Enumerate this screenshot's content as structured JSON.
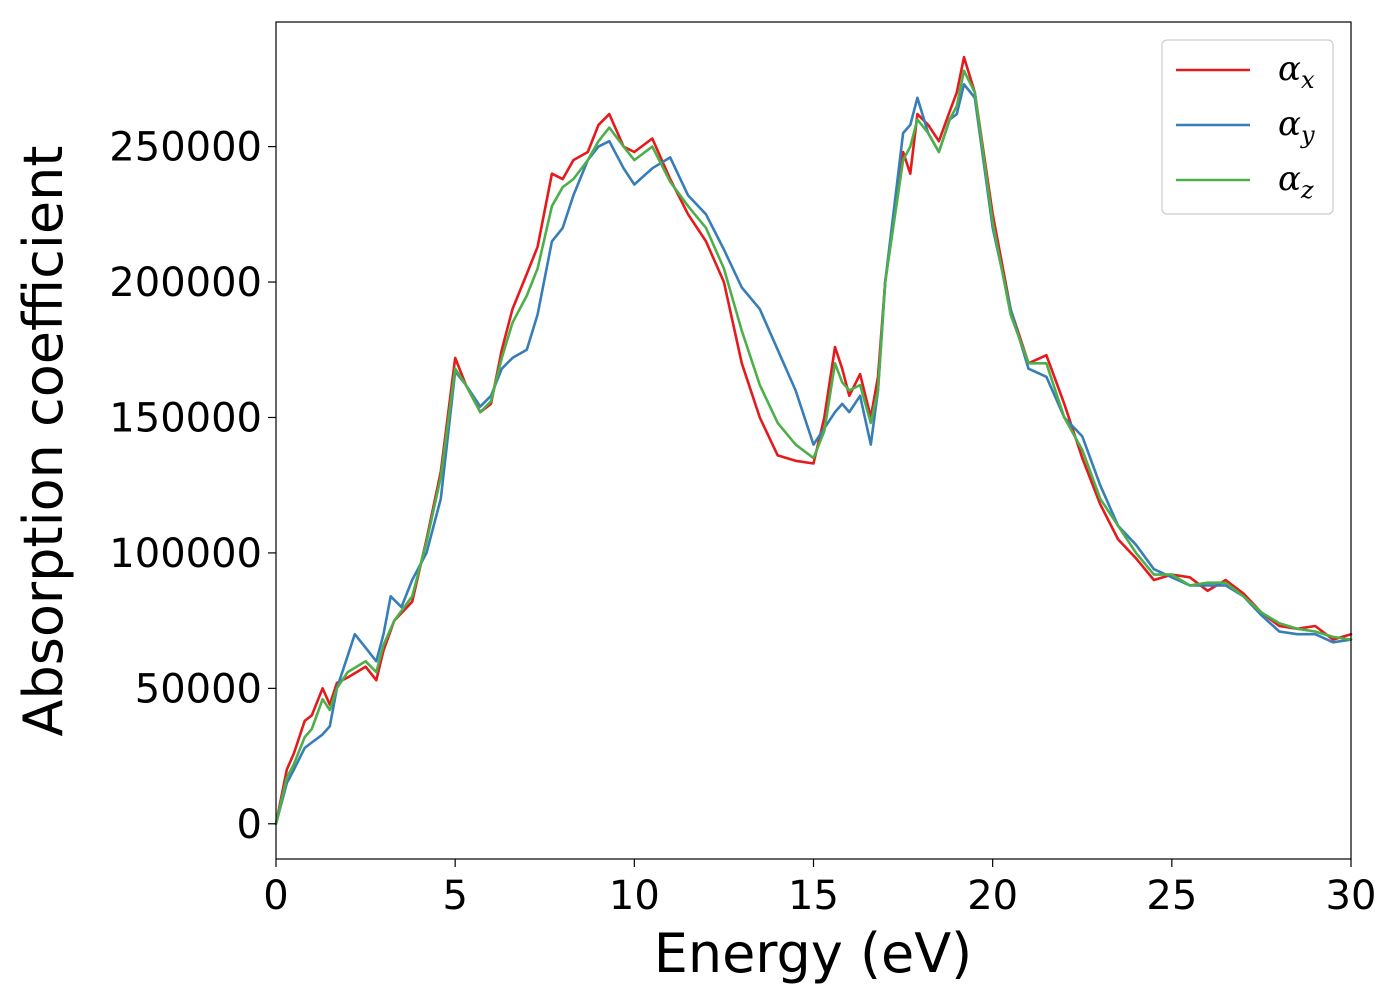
{
  "chart_data": {
    "type": "line",
    "xlabel": "Energy (eV)",
    "ylabel": "Absorption coefficient",
    "xlim": [
      0,
      30
    ],
    "ylim": [
      -13000,
      296000
    ],
    "xticks": [
      0,
      5,
      10,
      15,
      20,
      25,
      30
    ],
    "xtick_labels": [
      "0",
      "5",
      "10",
      "15",
      "20",
      "25",
      "30"
    ],
    "yticks": [
      0,
      50000,
      100000,
      150000,
      200000,
      250000
    ],
    "ytick_labels": [
      "0",
      "50000",
      "100000",
      "150000",
      "200000",
      "250000"
    ],
    "legend": {
      "position": "top-right"
    },
    "series": [
      {
        "name": "α",
        "subscript": "x",
        "color": "#e41a1c",
        "x": [
          0,
          0.3,
          0.5,
          0.8,
          1.0,
          1.3,
          1.5,
          1.7,
          2.0,
          2.5,
          2.8,
          3.0,
          3.3,
          3.8,
          4.2,
          4.6,
          5.0,
          5.3,
          5.7,
          6.0,
          6.3,
          6.6,
          7.0,
          7.3,
          7.7,
          8.0,
          8.3,
          8.7,
          9.0,
          9.3,
          9.7,
          10.0,
          10.5,
          11.0,
          11.5,
          12.0,
          12.5,
          13.0,
          13.5,
          14.0,
          14.5,
          15.0,
          15.3,
          15.6,
          15.8,
          16.0,
          16.3,
          16.6,
          16.8,
          17.0,
          17.5,
          17.7,
          17.9,
          18.2,
          18.5,
          18.8,
          19.0,
          19.2,
          19.5,
          20.0,
          20.5,
          21.0,
          21.5,
          22.0,
          22.5,
          23.0,
          23.5,
          24.0,
          24.5,
          25.0,
          25.5,
          26.0,
          26.5,
          27.0,
          27.5,
          28.0,
          28.5,
          29.0,
          29.5,
          30.0
        ],
        "y": [
          0,
          20000,
          26000,
          38000,
          40000,
          50000,
          44000,
          52000,
          54000,
          58000,
          53000,
          64000,
          75000,
          82000,
          105000,
          130000,
          172000,
          162000,
          152000,
          155000,
          175000,
          190000,
          203000,
          213000,
          240000,
          238000,
          245000,
          248000,
          258000,
          262000,
          250000,
          248000,
          253000,
          238000,
          225000,
          215000,
          200000,
          170000,
          150000,
          136000,
          134000,
          133000,
          150000,
          176000,
          168000,
          158000,
          166000,
          150000,
          165000,
          200000,
          248000,
          240000,
          262000,
          258000,
          252000,
          263000,
          270000,
          283000,
          270000,
          225000,
          190000,
          170000,
          173000,
          155000,
          135000,
          118000,
          105000,
          98000,
          90000,
          92000,
          91000,
          86000,
          90000,
          85000,
          78000,
          73000,
          72000,
          73000,
          68000,
          70000
        ]
      },
      {
        "name": "α",
        "subscript": "y",
        "color": "#377eb8",
        "x": [
          0,
          0.3,
          0.5,
          0.8,
          1.0,
          1.3,
          1.5,
          1.7,
          2.0,
          2.2,
          2.5,
          2.8,
          3.0,
          3.2,
          3.5,
          3.8,
          4.2,
          4.6,
          5.0,
          5.3,
          5.7,
          6.0,
          6.3,
          6.6,
          7.0,
          7.3,
          7.7,
          8.0,
          8.3,
          8.7,
          9.0,
          9.3,
          9.7,
          10.0,
          10.5,
          11.0,
          11.5,
          12.0,
          12.5,
          13.0,
          13.5,
          14.0,
          14.5,
          15.0,
          15.3,
          15.6,
          15.8,
          16.0,
          16.3,
          16.6,
          16.8,
          17.0,
          17.5,
          17.7,
          17.9,
          18.2,
          18.5,
          18.8,
          19.0,
          19.2,
          19.5,
          20.0,
          20.5,
          21.0,
          21.5,
          22.0,
          22.5,
          23.0,
          23.5,
          24.0,
          24.5,
          25.0,
          25.5,
          26.0,
          26.5,
          27.0,
          27.5,
          28.0,
          28.5,
          29.0,
          29.5,
          30.0
        ],
        "y": [
          0,
          15000,
          20000,
          28000,
          30000,
          33000,
          36000,
          50000,
          62000,
          70000,
          65000,
          60000,
          70000,
          84000,
          80000,
          90000,
          100000,
          120000,
          167000,
          162000,
          154000,
          158000,
          168000,
          172000,
          175000,
          188000,
          215000,
          220000,
          232000,
          245000,
          250000,
          252000,
          242000,
          236000,
          242000,
          246000,
          232000,
          225000,
          212000,
          198000,
          190000,
          175000,
          160000,
          140000,
          146000,
          152000,
          155000,
          152000,
          158000,
          140000,
          160000,
          200000,
          255000,
          258000,
          268000,
          255000,
          248000,
          260000,
          262000,
          273000,
          268000,
          220000,
          190000,
          168000,
          165000,
          150000,
          143000,
          125000,
          110000,
          103000,
          94000,
          91000,
          88000,
          88000,
          88000,
          84000,
          77000,
          71000,
          70000,
          70000,
          67000,
          68000
        ]
      },
      {
        "name": "α",
        "subscript": "z",
        "color": "#4daf4a",
        "x": [
          0,
          0.3,
          0.5,
          0.8,
          1.0,
          1.3,
          1.5,
          1.7,
          2.0,
          2.5,
          2.8,
          3.0,
          3.3,
          3.8,
          4.2,
          4.6,
          5.0,
          5.3,
          5.7,
          6.0,
          6.3,
          6.6,
          7.0,
          7.3,
          7.7,
          8.0,
          8.3,
          8.7,
          9.0,
          9.3,
          9.7,
          10.0,
          10.5,
          11.0,
          11.5,
          12.0,
          12.5,
          13.0,
          13.5,
          14.0,
          14.5,
          15.0,
          15.3,
          15.6,
          15.8,
          16.0,
          16.3,
          16.6,
          16.8,
          17.0,
          17.5,
          17.7,
          17.9,
          18.2,
          18.5,
          18.8,
          19.0,
          19.2,
          19.5,
          20.0,
          20.5,
          21.0,
          21.5,
          22.0,
          22.5,
          23.0,
          23.5,
          24.0,
          24.5,
          25.0,
          25.5,
          26.0,
          26.5,
          27.0,
          27.5,
          28.0,
          28.5,
          29.0,
          29.5,
          30.0
        ],
        "y": [
          0,
          17000,
          22000,
          32000,
          35000,
          46000,
          42000,
          50000,
          56000,
          60000,
          56000,
          66000,
          75000,
          84000,
          104000,
          128000,
          168000,
          162000,
          152000,
          156000,
          172000,
          185000,
          195000,
          205000,
          228000,
          235000,
          238000,
          245000,
          252000,
          257000,
          250000,
          245000,
          250000,
          237000,
          228000,
          220000,
          205000,
          182000,
          162000,
          148000,
          140000,
          135000,
          145000,
          170000,
          163000,
          160000,
          162000,
          148000,
          160000,
          200000,
          245000,
          250000,
          260000,
          255000,
          248000,
          260000,
          265000,
          278000,
          270000,
          222000,
          188000,
          170000,
          170000,
          150000,
          138000,
          120000,
          110000,
          100000,
          92000,
          92000,
          88000,
          89000,
          89000,
          84000,
          78000,
          74000,
          72000,
          71000,
          69000,
          68000
        ]
      }
    ]
  }
}
